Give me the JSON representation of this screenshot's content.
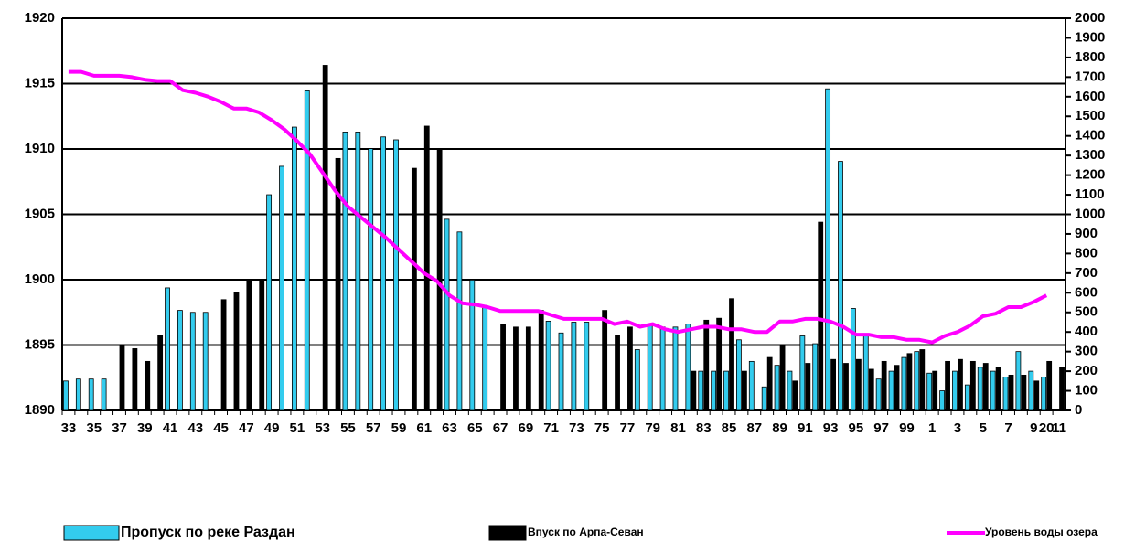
{
  "chart_data": {
    "type": "bar",
    "categories": [
      "33",
      null,
      "35",
      null,
      "37",
      null,
      "39",
      null,
      "41",
      null,
      "43",
      null,
      "45",
      null,
      "47",
      null,
      "49",
      null,
      "51",
      null,
      "53",
      null,
      "55",
      null,
      "57",
      null,
      "59",
      null,
      "61",
      null,
      "63",
      null,
      "65",
      null,
      "67",
      null,
      "69",
      null,
      "71",
      null,
      "73",
      null,
      "75",
      null,
      "77",
      null,
      "79",
      null,
      "81",
      null,
      "83",
      null,
      "85",
      null,
      "87",
      null,
      "89",
      null,
      "91",
      null,
      "93",
      null,
      "95",
      null,
      "97",
      null,
      "99",
      null,
      "1",
      null,
      "3",
      null,
      "5",
      null,
      "7",
      null,
      "9",
      "20",
      "11"
    ],
    "series": [
      {
        "name": "Пропуск по реке Раздан",
        "color": "#33ccee",
        "axis": "y2",
        "values": [
          150,
          160,
          160,
          160,
          null,
          null,
          null,
          null,
          625,
          510,
          500,
          500,
          null,
          null,
          null,
          null,
          1100,
          1245,
          1445,
          1630,
          null,
          null,
          1420,
          1420,
          1335,
          1395,
          1380,
          null,
          null,
          null,
          975,
          910,
          665,
          535,
          null,
          null,
          null,
          null,
          455,
          395,
          450,
          450,
          null,
          null,
          null,
          310,
          435,
          425,
          425,
          440,
          200,
          200,
          200,
          360,
          250,
          120,
          230,
          200,
          380,
          340,
          1640,
          1270,
          520,
          390,
          160,
          200,
          270,
          300,
          190,
          100,
          200,
          130,
          220,
          200,
          170,
          300,
          200,
          170,
          null
        ]
      },
      {
        "name": "Впуск по Арпа-Севан",
        "color": "#000000",
        "axis": "y2",
        "values": [
          null,
          null,
          null,
          null,
          330,
          315,
          250,
          385,
          null,
          null,
          null,
          null,
          565,
          600,
          665,
          665,
          null,
          null,
          null,
          null,
          1760,
          1285,
          null,
          null,
          null,
          null,
          null,
          1235,
          1450,
          1330,
          null,
          null,
          null,
          null,
          440,
          425,
          425,
          510,
          null,
          null,
          null,
          null,
          510,
          385,
          425,
          null,
          null,
          null,
          null,
          200,
          460,
          470,
          570,
          200,
          null,
          270,
          330,
          150,
          240,
          960,
          260,
          240,
          260,
          210,
          250,
          230,
          290,
          310,
          200,
          250,
          260,
          250,
          240,
          220,
          180,
          180,
          150,
          250,
          220
        ]
      },
      {
        "name": "Уровень воды озера",
        "color": "#ff00ff",
        "type": "line",
        "axis": "y",
        "values": [
          1915.9,
          1915.9,
          1915.6,
          1915.6,
          1915.6,
          1915.5,
          1915.3,
          1915.2,
          1915.2,
          1914.5,
          1914.3,
          1914.0,
          1913.6,
          1913.1,
          1913.1,
          1912.8,
          1912.2,
          1911.5,
          1910.6,
          1909.6,
          1908.2,
          1906.8,
          1905.6,
          1904.8,
          1904.0,
          1903.2,
          1902.3,
          1901.4,
          1900.5,
          1899.9,
          1898.8,
          1898.2,
          1898.1,
          1897.9,
          1897.6,
          1897.6,
          1897.6,
          1897.6,
          1897.3,
          1897.0,
          1897.0,
          1897.0,
          1897.0,
          1896.6,
          1896.8,
          1896.4,
          1896.6,
          1896.2,
          1896.0,
          1896.2,
          1896.4,
          1896.4,
          1896.2,
          1896.2,
          1896.0,
          1896.0,
          1896.8,
          1896.8,
          1897.0,
          1897.0,
          1896.8,
          1896.4,
          1895.8,
          1895.8,
          1895.6,
          1895.6,
          1895.4,
          1895.4,
          1895.2,
          1895.7,
          1896.0,
          1896.5,
          1897.2,
          1897.4,
          1897.9,
          1897.9,
          1898.3,
          1898.8,
          null
        ]
      }
    ],
    "ylim": [
      1890,
      1920
    ],
    "yticks": [
      1890,
      1895,
      1900,
      1905,
      1910,
      1915,
      1920
    ],
    "y2lim": [
      0,
      2000
    ],
    "y2ticks": [
      0,
      100,
      200,
      300,
      400,
      500,
      600,
      700,
      800,
      900,
      1000,
      1100,
      1200,
      1300,
      1400,
      1500,
      1600,
      1700,
      1800,
      1900,
      2000
    ],
    "grid": true,
    "legend": "bottom"
  }
}
